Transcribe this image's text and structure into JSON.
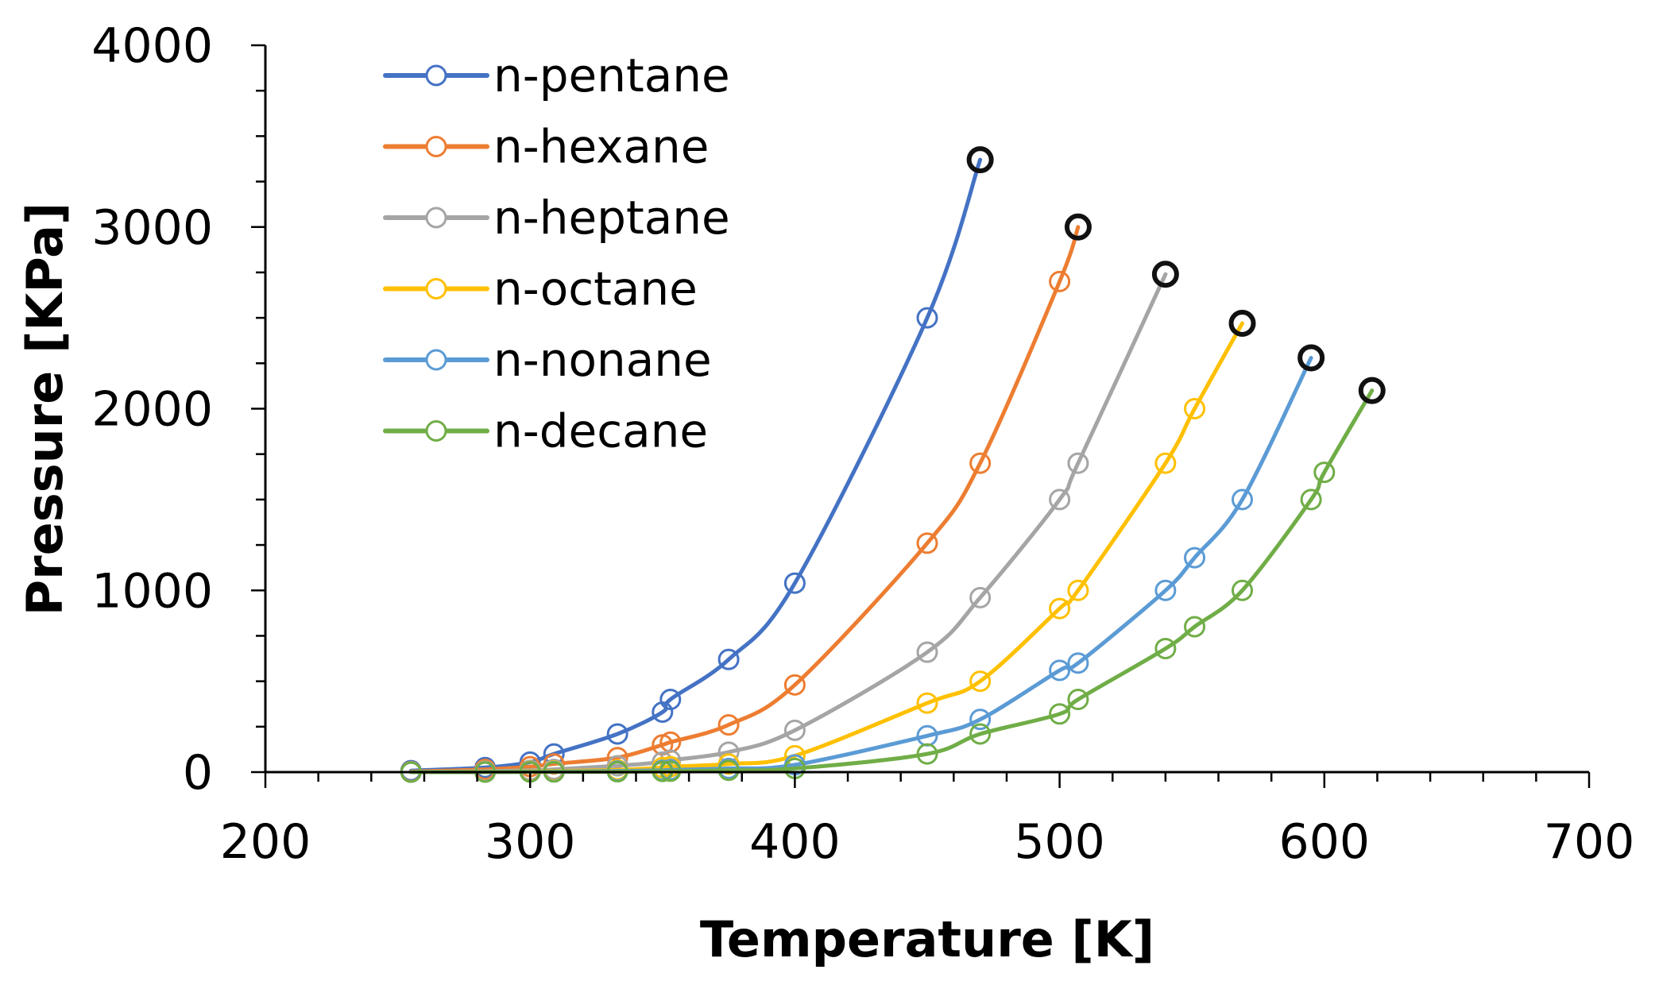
{
  "chart_data": {
    "type": "line",
    "title": "",
    "xlabel": "Temperature [K]",
    "ylabel": "Pressure [KPa]",
    "xlim": [
      200,
      700
    ],
    "ylim": [
      0,
      4000
    ],
    "x_ticks": [
      200,
      300,
      400,
      500,
      600,
      700
    ],
    "y_ticks": [
      0,
      1000,
      2000,
      3000,
      4000
    ],
    "grid": false,
    "legend_position": "top-left",
    "critical_marker": "open black circle at critical point",
    "series": [
      {
        "name": "n-pentane",
        "color": "#4472C4",
        "points": [
          [
            255,
            8
          ],
          [
            283,
            25
          ],
          [
            300,
            55
          ],
          [
            309,
            100
          ],
          [
            333,
            210
          ],
          [
            350,
            330
          ],
          [
            353,
            400
          ],
          [
            375,
            620
          ],
          [
            400,
            1040
          ],
          [
            450,
            2500
          ]
        ],
        "critical": [
          470,
          3370
        ]
      },
      {
        "name": "n-hexane",
        "color": "#ED7D31",
        "points": [
          [
            255,
            3
          ],
          [
            283,
            15
          ],
          [
            300,
            30
          ],
          [
            309,
            45
          ],
          [
            333,
            80
          ],
          [
            350,
            150
          ],
          [
            353,
            165
          ],
          [
            375,
            260
          ],
          [
            400,
            480
          ],
          [
            450,
            1260
          ],
          [
            470,
            1700
          ],
          [
            500,
            2700
          ]
        ],
        "critical": [
          507,
          3000
        ]
      },
      {
        "name": "n-heptane",
        "color": "#A5A5A5",
        "points": [
          [
            255,
            1
          ],
          [
            283,
            5
          ],
          [
            300,
            10
          ],
          [
            309,
            15
          ],
          [
            333,
            35
          ],
          [
            350,
            55
          ],
          [
            353,
            65
          ],
          [
            375,
            110
          ],
          [
            400,
            230
          ],
          [
            450,
            660
          ],
          [
            470,
            960
          ],
          [
            500,
            1500
          ],
          [
            507,
            1700
          ]
        ],
        "critical": [
          540,
          2740
        ]
      },
      {
        "name": "n-octane",
        "color": "#FFC000",
        "points": [
          [
            255,
            0
          ],
          [
            283,
            2
          ],
          [
            300,
            4
          ],
          [
            309,
            6
          ],
          [
            333,
            12
          ],
          [
            350,
            25
          ],
          [
            353,
            30
          ],
          [
            375,
            45
          ],
          [
            400,
            90
          ],
          [
            450,
            380
          ],
          [
            470,
            500
          ],
          [
            500,
            900
          ],
          [
            507,
            1000
          ],
          [
            540,
            1700
          ],
          [
            551,
            2000
          ]
        ],
        "critical": [
          569,
          2470
        ]
      },
      {
        "name": "n-nonane",
        "color": "#5B9BD5",
        "points": [
          [
            255,
            0
          ],
          [
            283,
            1
          ],
          [
            300,
            2
          ],
          [
            309,
            3
          ],
          [
            333,
            6
          ],
          [
            350,
            10
          ],
          [
            353,
            12
          ],
          [
            375,
            20
          ],
          [
            400,
            40
          ],
          [
            450,
            200
          ],
          [
            470,
            290
          ],
          [
            500,
            560
          ],
          [
            507,
            600
          ],
          [
            540,
            1000
          ],
          [
            551,
            1180
          ],
          [
            569,
            1500
          ]
        ],
        "critical": [
          595,
          2280
        ]
      },
      {
        "name": "n-decane",
        "color": "#70AD47",
        "points": [
          [
            255,
            0
          ],
          [
            283,
            0
          ],
          [
            300,
            1
          ],
          [
            309,
            1
          ],
          [
            333,
            2
          ],
          [
            350,
            4
          ],
          [
            353,
            5
          ],
          [
            375,
            10
          ],
          [
            400,
            20
          ],
          [
            450,
            100
          ],
          [
            470,
            210
          ],
          [
            500,
            320
          ],
          [
            507,
            400
          ],
          [
            540,
            680
          ],
          [
            551,
            800
          ],
          [
            569,
            1000
          ],
          [
            595,
            1500
          ],
          [
            600,
            1650
          ]
        ],
        "critical": [
          618,
          2100
        ]
      }
    ]
  }
}
